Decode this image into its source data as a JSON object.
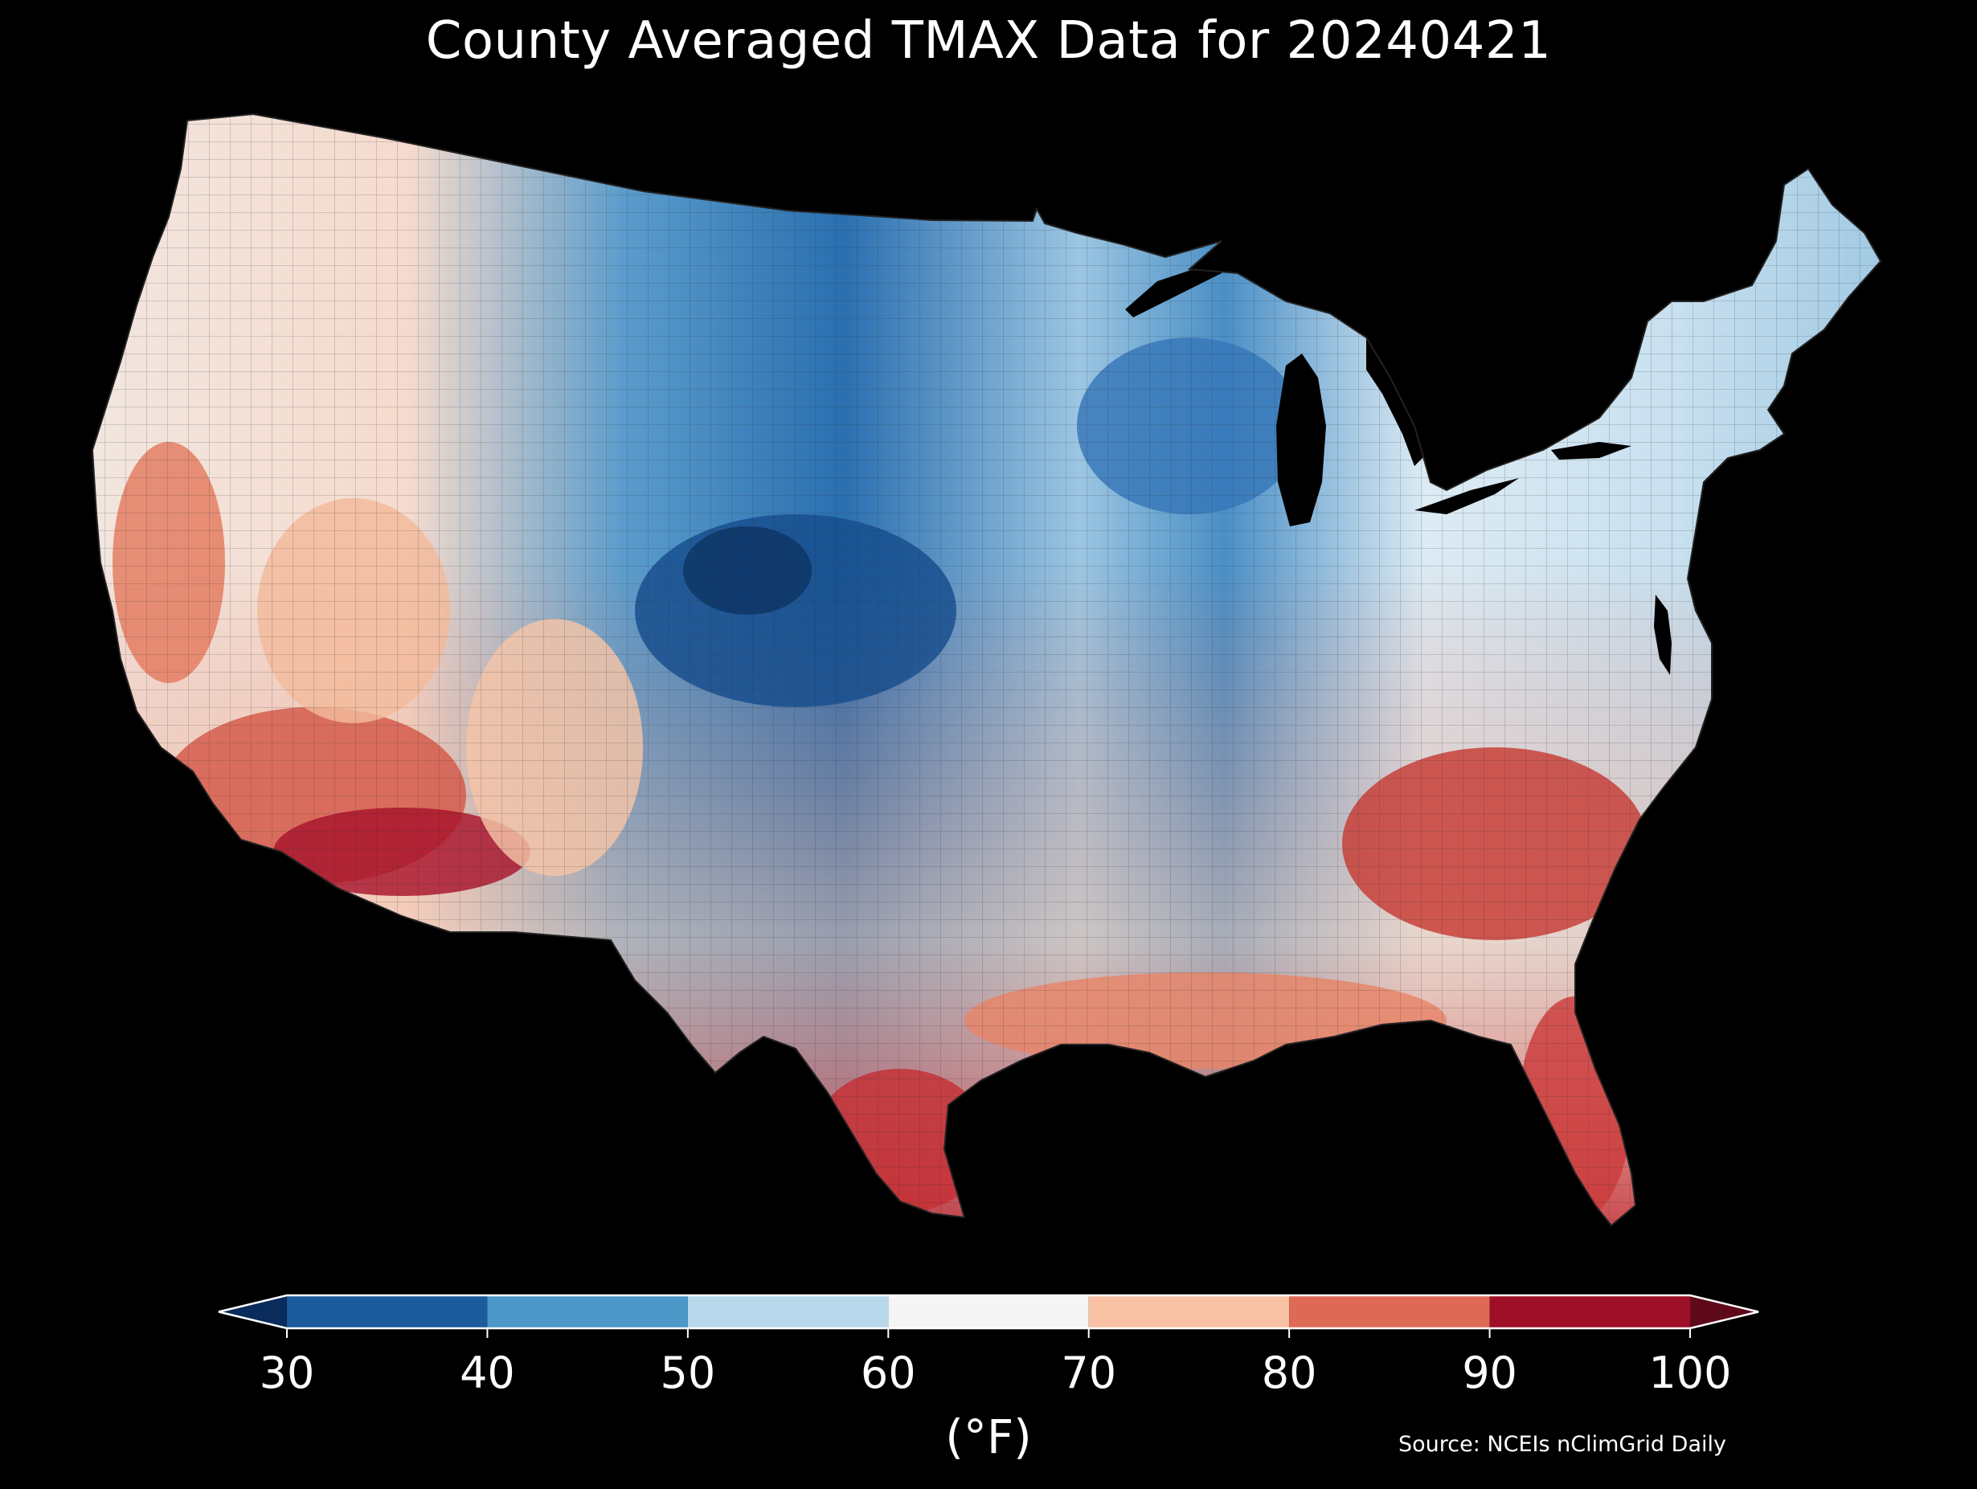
{
  "title": "County Averaged TMAX Data for 20240421",
  "source": "Source: NCEIs nClimGrid Daily",
  "colorbar": {
    "unit_label": "(°F)",
    "ticks": [
      "30",
      "40",
      "50",
      "60",
      "70",
      "80",
      "90",
      "100"
    ],
    "bins": [
      {
        "from": 30,
        "to": 40,
        "color": "#1b5a9b"
      },
      {
        "from": 40,
        "to": 50,
        "color": "#4a97c8"
      },
      {
        "from": 50,
        "to": 60,
        "color": "#b7d8ea"
      },
      {
        "from": 60,
        "to": 70,
        "color": "#f5f5f5"
      },
      {
        "from": 70,
        "to": 80,
        "color": "#f9c1a4"
      },
      {
        "from": 80,
        "to": 90,
        "color": "#de6a55"
      },
      {
        "from": 90,
        "to": 100,
        "color": "#9e1027"
      }
    ],
    "under_color": "#0a2c5c",
    "over_color": "#5e0a1a"
  },
  "map": {
    "land_gradient_stops": [
      {
        "offset": "0%",
        "color": "#f2e6e0"
      },
      {
        "offset": "18%",
        "color": "#f5dbcd"
      },
      {
        "offset": "30%",
        "color": "#5a9ccc"
      },
      {
        "offset": "42%",
        "color": "#2a6fb0"
      },
      {
        "offset": "55%",
        "color": "#9cc6e2"
      },
      {
        "offset": "63%",
        "color": "#4a8fc6"
      },
      {
        "offset": "74%",
        "color": "#dcebf4"
      },
      {
        "offset": "88%",
        "color": "#c8e0ef"
      },
      {
        "offset": "100%",
        "color": "#9fc8e3"
      }
    ],
    "south_gradient_stops": [
      {
        "offset": "0%",
        "color": "#de6a55",
        "opacity": "0"
      },
      {
        "offset": "55%",
        "color": "#f4c5ad",
        "opacity": "0.55"
      },
      {
        "offset": "100%",
        "color": "#c8343a",
        "opacity": "0.95"
      }
    ],
    "regions": [
      {
        "id": "arizona-hot",
        "color": "#a8142c"
      },
      {
        "id": "socal-desert",
        "color": "#d35848"
      },
      {
        "id": "central-valley",
        "color": "#e37a5e"
      },
      {
        "id": "southeast-hot",
        "color": "#c73a33"
      },
      {
        "id": "florida-hot",
        "color": "#cc3b3a"
      },
      {
        "id": "south-texas-hot",
        "color": "#c52f35"
      },
      {
        "id": "gulf-coast-warm",
        "color": "#e88468"
      },
      {
        "id": "rockies-cold",
        "color": "#164d8c"
      },
      {
        "id": "colorado-core",
        "color": "#0d3464"
      },
      {
        "id": "great-lakes-cold",
        "color": "#3676b8"
      },
      {
        "id": "new-mexico-warm",
        "color": "#f5c4a7"
      },
      {
        "id": "nevada-warm",
        "color": "#f3b99b"
      }
    ],
    "water_color": "#000000",
    "boundary_color": "#333333"
  }
}
